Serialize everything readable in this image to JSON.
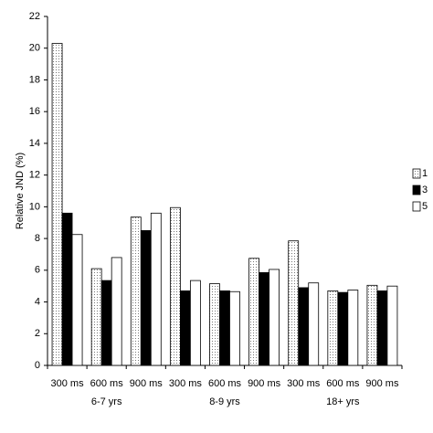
{
  "chart_data": {
    "type": "bar",
    "y_label": "Relative JND (%)",
    "categories": [
      "300 ms",
      "600 ms",
      "900 ms",
      "300 ms",
      "600 ms",
      "900 ms",
      "300 ms",
      "600 ms",
      "900 ms"
    ],
    "groups": [
      "6-7 yrs",
      "8-9 yrs",
      "18+ yrs"
    ],
    "series": [
      {
        "name": "1",
        "color": "#ffffff",
        "pattern": "dots",
        "values": [
          20.3,
          6.1,
          9.35,
          9.95,
          5.15,
          6.75,
          7.85,
          4.7,
          5.05
        ]
      },
      {
        "name": "3",
        "color": "#000000",
        "values": [
          9.6,
          5.35,
          8.5,
          4.7,
          4.7,
          5.85,
          4.9,
          4.6,
          4.7
        ]
      },
      {
        "name": "5",
        "color": "#ffffff",
        "values": [
          8.25,
          6.8,
          9.6,
          5.35,
          4.65,
          6.05,
          5.2,
          4.75,
          5.0
        ]
      }
    ],
    "ylim": [
      0,
      22
    ],
    "yticks": [
      0,
      2,
      4,
      6,
      8,
      10,
      12,
      14,
      16,
      18,
      20,
      22
    ],
    "grid": false,
    "legend": "right"
  }
}
